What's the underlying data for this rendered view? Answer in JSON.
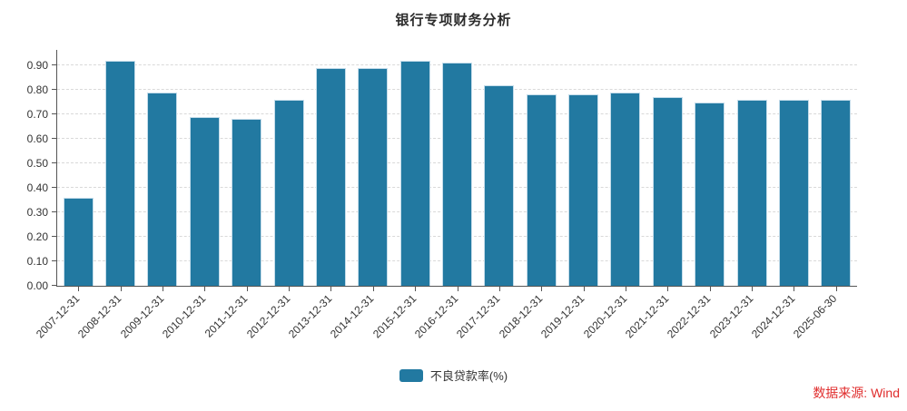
{
  "title": "银行专项财务分析",
  "source_note": "数据来源: Wind",
  "legend": {
    "label": "不良贷款率(%)"
  },
  "colors": {
    "bar": "#2279a1",
    "bar-border": "#c4dcea",
    "axis": "#555555",
    "grid": "#d9d9d9",
    "label": "#333333",
    "title": "#2b2b2b",
    "source": "#e02d2d"
  },
  "chart_data": {
    "type": "bar",
    "title": "银行专项财务分析",
    "categories": [
      "2007-12-31",
      "2008-12-31",
      "2009-12-31",
      "2010-12-31",
      "2011-12-31",
      "2012-12-31",
      "2013-12-31",
      "2014-12-31",
      "2015-12-31",
      "2016-12-31",
      "2017-12-31",
      "2018-12-31",
      "2019-12-31",
      "2020-12-31",
      "2021-12-31",
      "2022-12-31",
      "2023-12-31",
      "2024-12-31",
      "2025-06-30"
    ],
    "series": [
      {
        "name": "不良贷款率(%)",
        "values": [
          0.36,
          0.92,
          0.79,
          0.69,
          0.68,
          0.76,
          0.89,
          0.89,
          0.92,
          0.91,
          0.82,
          0.78,
          0.78,
          0.79,
          0.77,
          0.75,
          0.76,
          0.76,
          0.76
        ]
      }
    ],
    "xlabel": "",
    "ylabel": "",
    "ylim": [
      0,
      0.963
    ],
    "y_ticks": [
      0.0,
      0.1,
      0.2,
      0.3,
      0.4,
      0.5,
      0.6,
      0.7,
      0.8,
      0.9
    ],
    "grid": true,
    "grid_style": "dashed",
    "legend_position": "bottom",
    "x_label_rotation": -45,
    "annotations": [
      "数据来源: Wind"
    ]
  }
}
